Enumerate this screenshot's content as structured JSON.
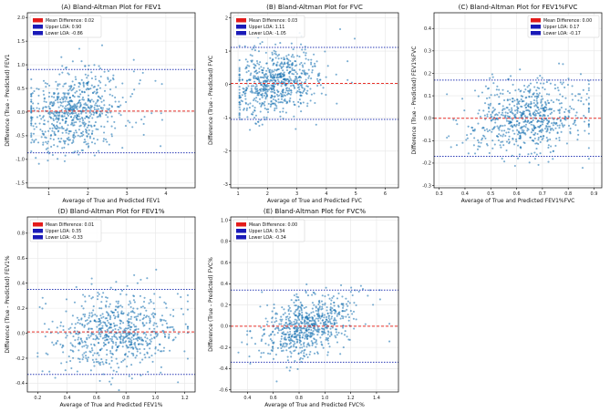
{
  "figure_title": "",
  "colors": {
    "point": "#1f77b4",
    "mean_line": "#e8312a",
    "loa_line": "#2b3bb6",
    "grid": "#e6e6e6",
    "axis": "#000000",
    "legend_mean": "#e31b1b",
    "legend_loa": "#1a1ab8"
  },
  "chart_data": [
    {
      "id": "A",
      "type": "scatter",
      "title": "(A) Bland-Altman Plot for FEV1",
      "xlabel": "Average of True and Predicted FEV1",
      "ylabel": "Difference (True - Predicted) FEV1",
      "xlim": [
        0.45,
        4.75
      ],
      "ylim": [
        -1.6,
        2.1
      ],
      "xticks": [
        1,
        2,
        3,
        4
      ],
      "xtick_labels": [
        "1",
        "2",
        "3",
        "4"
      ],
      "yticks": [
        -1.5,
        -1.0,
        -0.5,
        0.0,
        0.5,
        1.0,
        1.5,
        2.0
      ],
      "ytick_labels": [
        "-1.5",
        "-1.0",
        "-0.5",
        "0.0",
        "0.5",
        "1.0",
        "1.5",
        "2.0"
      ],
      "grid": true,
      "legend_position": "top-left",
      "mean_difference": 0.02,
      "upper_loa": 0.9,
      "lower_loa": -0.86,
      "legend": [
        "Mean Difference: 0.02",
        "Upper LOA: 0.90",
        "Lower LOA: -0.86"
      ],
      "point_cloud": {
        "n": 700,
        "seed": 11,
        "x_center": 1.6,
        "x_sd": 0.6,
        "x_min": 0.55,
        "x_max": 4.6,
        "y_slope": 0.12,
        "y_sd": 0.42
      }
    },
    {
      "id": "B",
      "type": "scatter",
      "title": "(B) Bland-Altman Plot for FVC",
      "xlabel": "Average of True and Predicted FVC",
      "ylabel": "Difference (True - Predicted) FVC",
      "xlim": [
        0.75,
        6.45
      ],
      "ylim": [
        -3.1,
        2.15
      ],
      "xticks": [
        1,
        2,
        3,
        4,
        5,
        6
      ],
      "xtick_labels": [
        "1",
        "2",
        "3",
        "4",
        "5",
        "6"
      ],
      "yticks": [
        -3,
        -2,
        -1,
        0,
        1,
        2
      ],
      "ytick_labels": [
        "-3",
        "-2",
        "-1",
        "0",
        "1",
        "2"
      ],
      "grid": true,
      "legend_position": "top-left",
      "mean_difference": 0.03,
      "upper_loa": 1.11,
      "lower_loa": -1.05,
      "legend": [
        "Mean Difference: 0.03",
        "Upper LOA: 1.11",
        "Lower LOA: -1.05"
      ],
      "point_cloud": {
        "n": 700,
        "seed": 23,
        "x_center": 2.2,
        "x_sd": 0.7,
        "x_min": 1.05,
        "x_max": 6.2,
        "y_slope": 0.15,
        "y_sd": 0.5
      }
    },
    {
      "id": "C",
      "type": "scatter",
      "title": "(C) Bland-Altman Plot for FEV1%FVC",
      "xlabel": "Average of True and Predicted FEV1%FVC",
      "ylabel": "Difference (True - Predicted) FEV1%FVC",
      "xlim": [
        0.28,
        0.93
      ],
      "ylim": [
        -0.31,
        0.47
      ],
      "xticks": [
        0.3,
        0.4,
        0.5,
        0.6,
        0.7,
        0.8,
        0.9
      ],
      "xtick_labels": [
        "0.3",
        "0.4",
        "0.5",
        "0.6",
        "0.7",
        "0.8",
        "0.9"
      ],
      "yticks": [
        -0.3,
        -0.2,
        -0.1,
        0.0,
        0.1,
        0.2,
        0.3,
        0.4
      ],
      "ytick_labels": [
        "-0.3",
        "-0.2",
        "-0.1",
        "0.0",
        "0.1",
        "0.2",
        "0.3",
        "0.4"
      ],
      "grid": true,
      "legend_position": "top-right",
      "mean_difference": 0.0,
      "upper_loa": 0.17,
      "lower_loa": -0.17,
      "legend": [
        "Mean Difference: 0.00",
        "Upper LOA: 0.17",
        "Lower LOA: -0.17"
      ],
      "point_cloud": {
        "n": 700,
        "seed": 37,
        "x_center": 0.63,
        "x_sd": 0.11,
        "x_min": 0.33,
        "x_max": 0.88,
        "y_slope": 0.12,
        "y_sd": 0.08
      }
    },
    {
      "id": "D",
      "type": "scatter",
      "title": "(D) Bland-Altman Plot for FEV1%",
      "xlabel": "Average of True and Predicted FEV1%",
      "ylabel": "Difference (True - Predicted) FEV1%",
      "xlim": [
        0.13,
        1.27
      ],
      "ylim": [
        -0.47,
        0.93
      ],
      "xticks": [
        0.2,
        0.4,
        0.6,
        0.8,
        1.0,
        1.2
      ],
      "xtick_labels": [
        "0.2",
        "0.4",
        "0.6",
        "0.8",
        "1.0",
        "1.2"
      ],
      "yticks": [
        -0.4,
        -0.2,
        0.0,
        0.2,
        0.4,
        0.6,
        0.8
      ],
      "ytick_labels": [
        "-0.4",
        "-0.2",
        "0.0",
        "0.2",
        "0.4",
        "0.6",
        "0.8"
      ],
      "grid": true,
      "legend_position": "top-left",
      "mean_difference": 0.01,
      "upper_loa": 0.35,
      "lower_loa": -0.33,
      "legend": [
        "Mean Difference: 0.01",
        "Upper LOA: 0.35",
        "Lower LOA: -0.33"
      ],
      "point_cloud": {
        "n": 700,
        "seed": 53,
        "x_center": 0.72,
        "x_sd": 0.2,
        "x_min": 0.2,
        "x_max": 1.22,
        "y_slope": 0.12,
        "y_sd": 0.16
      }
    },
    {
      "id": "E",
      "type": "scatter",
      "title": "(E) Bland-Altman Plot for FVC%",
      "xlabel": "Average of True and Predicted FVC%",
      "ylabel": "Difference (True - Predicted) FVC%",
      "xlim": [
        0.27,
        1.57
      ],
      "ylim": [
        -0.62,
        1.03
      ],
      "xticks": [
        0.4,
        0.6,
        0.8,
        1.0,
        1.2,
        1.4
      ],
      "xtick_labels": [
        "0.4",
        "0.6",
        "0.8",
        "1.0",
        "1.2",
        "1.4"
      ],
      "yticks": [
        -0.6,
        -0.4,
        -0.2,
        0.0,
        0.2,
        0.4,
        0.6,
        0.8,
        1.0
      ],
      "ytick_labels": [
        "-0.6",
        "-0.4",
        "-0.2",
        "0.0",
        "0.2",
        "0.4",
        "0.6",
        "0.8",
        "1.0"
      ],
      "grid": true,
      "legend_position": "top-left",
      "mean_difference": 0.0,
      "upper_loa": 0.34,
      "lower_loa": -0.34,
      "legend": [
        "Mean Difference: 0.00",
        "Upper LOA: 0.34",
        "Lower LOA: -0.34"
      ],
      "point_cloud": {
        "n": 700,
        "seed": 71,
        "x_center": 0.85,
        "x_sd": 0.17,
        "x_min": 0.33,
        "x_max": 1.5,
        "y_slope": 0.35,
        "y_sd": 0.14
      }
    }
  ]
}
